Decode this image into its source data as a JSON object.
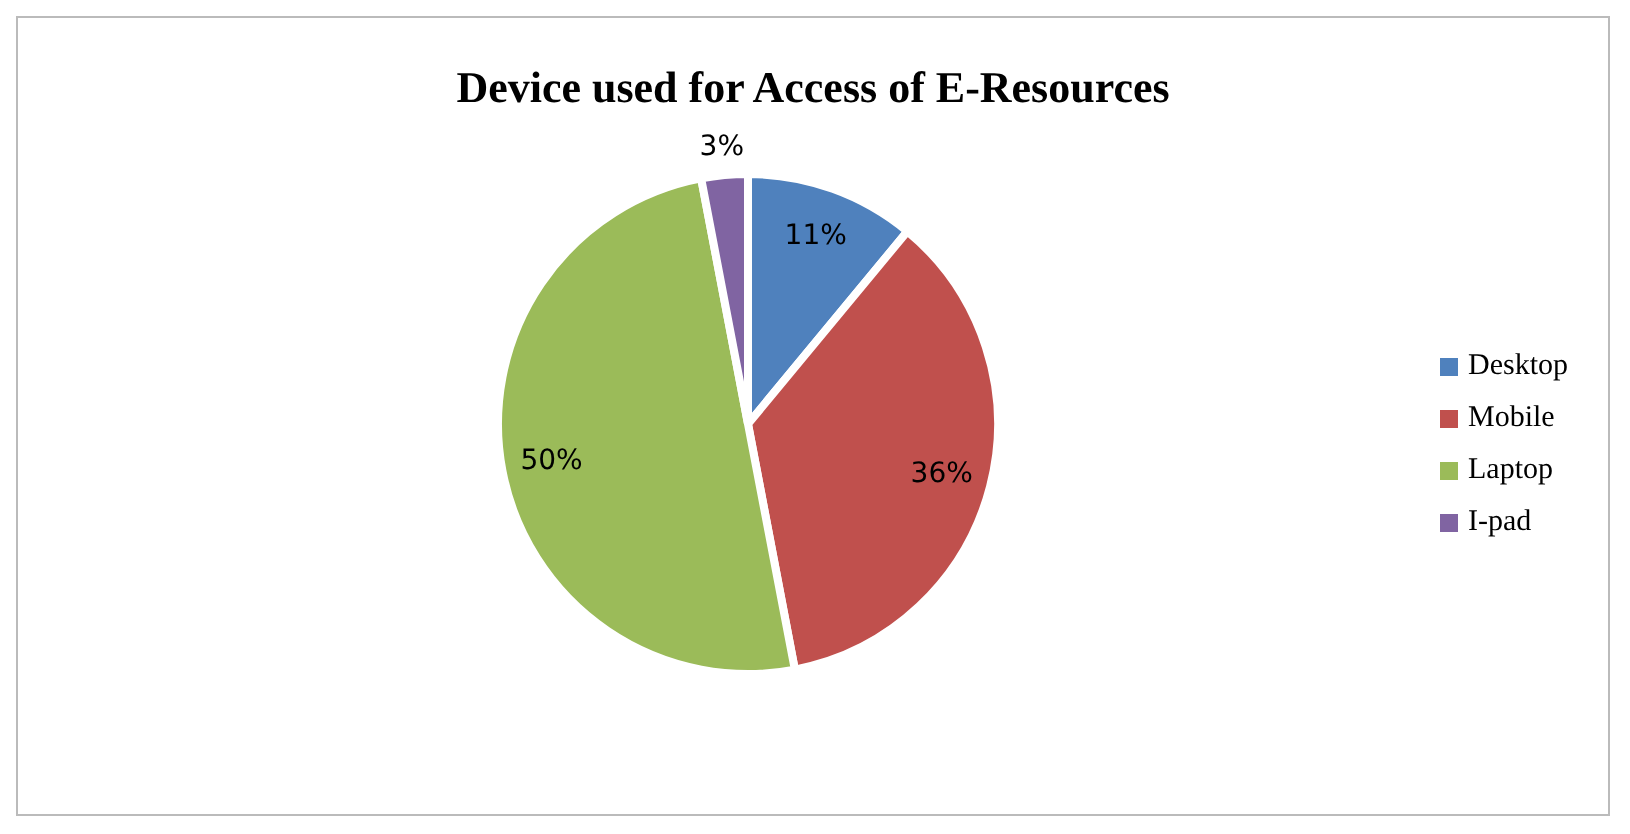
{
  "chart_data": {
    "type": "pie",
    "title": "Device used for Access of E-Resources",
    "categories": [
      "Desktop",
      "Mobile",
      "Laptop",
      "I-pad"
    ],
    "values": [
      11,
      36,
      50,
      3
    ],
    "value_labels": [
      "11%",
      "36%",
      "50%",
      "3%"
    ],
    "colors": [
      "#4f81bd",
      "#c0504d",
      "#9bbb59",
      "#8064a2"
    ],
    "legend": "right"
  }
}
